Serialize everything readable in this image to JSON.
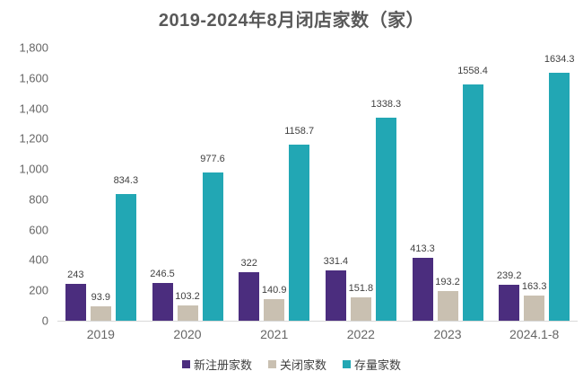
{
  "title": "2019-2024年8月闭店家数（家）",
  "chart_data": {
    "type": "bar",
    "title": "2019-2024年8月闭店家数（家）",
    "categories": [
      "2019",
      "2020",
      "2021",
      "2022",
      "2023",
      "2024.1-8"
    ],
    "series": [
      {
        "name": "新注册家数",
        "color": "#4B2D7E",
        "values": [
          243,
          246.5,
          322,
          331.4,
          413.3,
          239.2
        ]
      },
      {
        "name": "关闭家数",
        "color": "#C9C0B1",
        "values": [
          93.9,
          103.2,
          140.9,
          151.8,
          193.2,
          163.3
        ]
      },
      {
        "name": "存量家数",
        "color": "#22A7B4",
        "values": [
          834.3,
          977.6,
          1158.7,
          1338.3,
          1558.4,
          1634.3
        ]
      }
    ],
    "data_labels": true,
    "xlabel": "",
    "ylabel": "",
    "ylim": [
      0,
      1800
    ],
    "ytick_interval": 200,
    "ytick_labels": [
      "0",
      "200",
      "400",
      "600",
      "800",
      "1,000",
      "1,200",
      "1,400",
      "1,600",
      "1,800"
    ],
    "grid": false,
    "legend_position": "bottom"
  }
}
